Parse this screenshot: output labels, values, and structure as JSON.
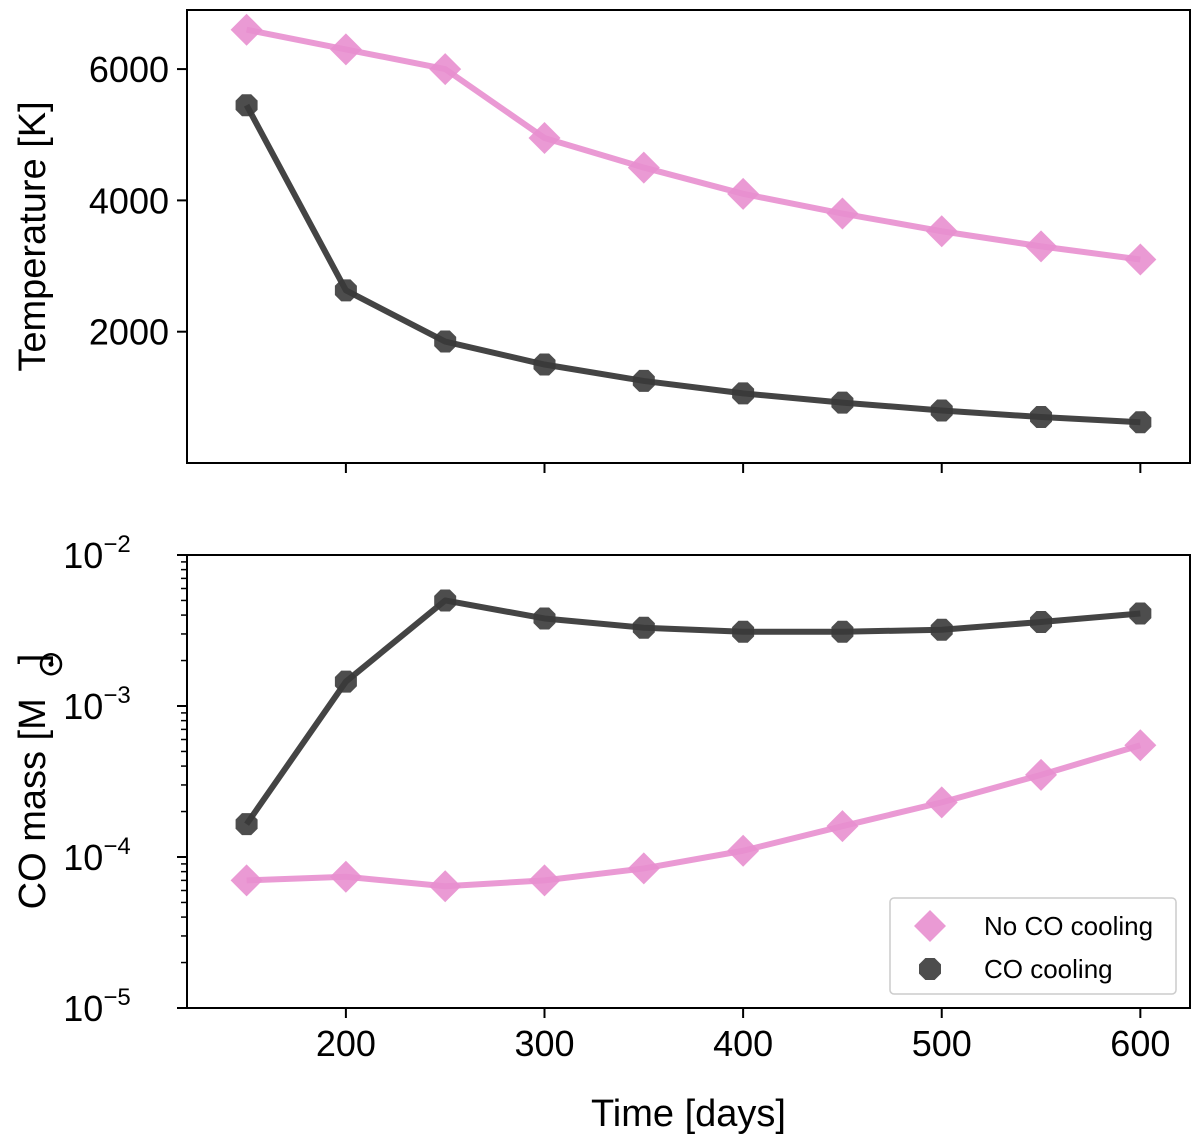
{
  "chart_data": [
    {
      "type": "line",
      "xlabel": "",
      "ylabel": "Temperature [K]",
      "xlim": [
        120,
        625
      ],
      "ylim": [
        0,
        6900
      ],
      "yscale": "linear",
      "xticks": [
        200,
        300,
        400,
        500,
        600
      ],
      "yticks": [
        2000,
        4000,
        6000
      ],
      "ytick_labels": [
        "2000",
        "4000",
        "6000"
      ],
      "x": [
        150,
        200,
        250,
        300,
        350,
        400,
        450,
        500,
        550,
        600
      ],
      "series": [
        {
          "name": "No CO cooling",
          "color": "#e88fcf",
          "marker": "diamond",
          "values": [
            6600,
            6300,
            6000,
            4950,
            4500,
            4100,
            3800,
            3530,
            3300,
            3100
          ]
        },
        {
          "name": "CO cooling",
          "color": "#3a3a3a",
          "marker": "octagon",
          "values": [
            5450,
            2630,
            1850,
            1500,
            1250,
            1060,
            920,
            800,
            700,
            620
          ]
        }
      ],
      "grid": false,
      "legend": "none"
    },
    {
      "type": "line",
      "xlabel": "Time [days]",
      "ylabel": "CO mass [M",
      "ylabel_suffix": "]",
      "ylabel_symbol": "sun-symbol",
      "xlim": [
        120,
        625
      ],
      "ylim": [
        1e-05,
        0.01
      ],
      "yscale": "log",
      "xticks": [
        200,
        300,
        400,
        500,
        600
      ],
      "xtick_labels": [
        "200",
        "300",
        "400",
        "500",
        "600"
      ],
      "yticks": [
        1e-05,
        0.0001,
        0.001,
        0.01
      ],
      "ytick_base": "10",
      "ytick_exponents": [
        "−5",
        "−4",
        "−3",
        "−2"
      ],
      "x": [
        150,
        200,
        250,
        300,
        350,
        400,
        450,
        500,
        550,
        600
      ],
      "series": [
        {
          "name": "No CO cooling",
          "color": "#e88fcf",
          "marker": "diamond",
          "values": [
            7e-05,
            7.4e-05,
            6.4e-05,
            7e-05,
            8.4e-05,
            0.00011,
            0.00016,
            0.00023,
            0.00035,
            0.00055
          ]
        },
        {
          "name": "CO cooling",
          "color": "#3a3a3a",
          "marker": "octagon",
          "values": [
            0.000165,
            0.00145,
            0.005,
            0.0038,
            0.0033,
            0.0031,
            0.0031,
            0.0032,
            0.0036,
            0.0041
          ]
        }
      ],
      "grid": false,
      "legend": "lower-right"
    }
  ]
}
